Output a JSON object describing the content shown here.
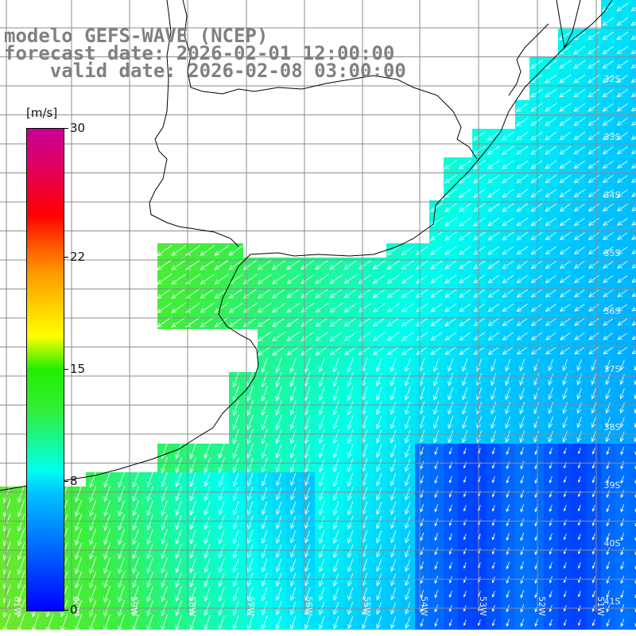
{
  "header": {
    "line1": "modelo GEFS-WAVE (NCEP)",
    "line2": "forecast date: 2026-02-01 12:00:00",
    "line3": "    valid date: 2026-02-08 03:00:00"
  },
  "colorbar": {
    "unit": "[m/s]",
    "min": 0,
    "max": 30,
    "ticks": [
      {
        "label": "30",
        "value": 30
      },
      {
        "label": "22",
        "value": 22
      },
      {
        "label": "15",
        "value": 15
      },
      {
        "label": "8",
        "value": 8
      },
      {
        "label": "0",
        "value": 0
      }
    ]
  },
  "map": {
    "lat_labels": [
      "32S",
      "33S",
      "34S",
      "35S",
      "36S",
      "37S",
      "38S",
      "39S",
      "40S",
      "41S"
    ],
    "lon_labels": [
      "61W",
      "60W",
      "59W",
      "58W",
      "57W",
      "56W",
      "55W",
      "54W",
      "53W",
      "52W",
      "51W"
    ],
    "colors": {
      "land": "#ffffff",
      "grid": "#8c8c8c",
      "coast": "#000000",
      "arrow": "#ffffff"
    }
  }
}
